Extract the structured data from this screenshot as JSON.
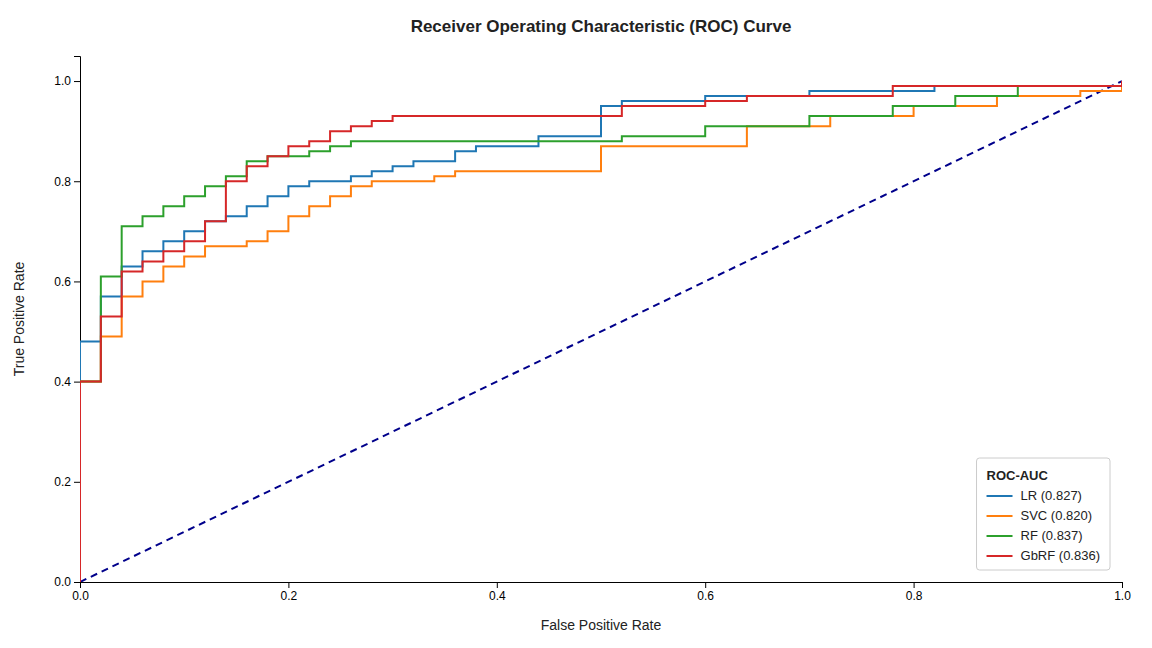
{
  "chart_data": {
    "type": "step",
    "title": "Receiver Operating Characteristic (ROC) Curve",
    "xlabel": "False Positive Rate",
    "ylabel": "True Positive Rate",
    "xlim": [
      0.0,
      1.0
    ],
    "ylim": [
      0.0,
      1.05
    ],
    "xticks": [
      {
        "value": 0.0,
        "label": "0.0"
      },
      0.2,
      0.4,
      0.6,
      0.8,
      {
        "value": 1.0,
        "label": "1.0"
      }
    ],
    "yticks": [
      {
        "value": 0.0,
        "label": "0.0"
      },
      0.2,
      0.4,
      0.6,
      0.8,
      {
        "value": 1.0,
        "label": "1.0"
      }
    ],
    "grid": false,
    "legend": "lower right",
    "legend_title": "ROC-AUC",
    "series": [
      {
        "type": "line",
        "line_style": "dashed",
        "color": "#00008B",
        "x": [
          0,
          1
        ],
        "values": [
          0,
          1
        ]
      },
      {
        "name": "LR (0.827)",
        "color": "#1f77b4",
        "x": [
          0.0,
          0.0,
          0.0,
          0.02,
          0.02,
          0.04,
          0.04,
          0.06,
          0.06,
          0.08,
          0.08,
          0.1,
          0.1,
          0.12,
          0.12,
          0.14,
          0.14,
          0.16,
          0.16,
          0.18,
          0.18,
          0.2,
          0.2,
          0.22,
          0.22,
          0.24,
          0.26,
          0.26,
          0.28,
          0.28,
          0.3,
          0.3,
          0.32,
          0.32,
          0.34,
          0.36,
          0.36,
          0.38,
          0.38,
          0.4,
          0.42,
          0.44,
          0.44,
          0.46,
          0.5,
          0.5,
          0.52,
          0.52,
          0.56,
          0.6,
          0.6,
          0.64,
          0.66,
          0.68,
          0.7,
          0.72,
          0.8,
          0.82,
          0.9,
          1.0
        ],
        "values": [
          0.0,
          0.27,
          0.48,
          0.48,
          0.57,
          0.57,
          0.63,
          0.63,
          0.66,
          0.66,
          0.68,
          0.68,
          0.7,
          0.7,
          0.72,
          0.72,
          0.73,
          0.73,
          0.75,
          0.75,
          0.77,
          0.77,
          0.79,
          0.79,
          0.8,
          0.8,
          0.8,
          0.81,
          0.81,
          0.82,
          0.82,
          0.83,
          0.83,
          0.84,
          0.84,
          0.84,
          0.86,
          0.86,
          0.87,
          0.87,
          0.87,
          0.87,
          0.89,
          0.89,
          0.89,
          0.95,
          0.95,
          0.96,
          0.96,
          0.96,
          0.97,
          0.97,
          0.97,
          0.97,
          0.98,
          0.98,
          0.98,
          0.99,
          0.99,
          1.0
        ]
      },
      {
        "name": "SVC (0.820)",
        "color": "#ff7f0e",
        "x": [
          0.0,
          0.0,
          0.0,
          0.02,
          0.02,
          0.04,
          0.04,
          0.06,
          0.06,
          0.08,
          0.08,
          0.1,
          0.1,
          0.12,
          0.12,
          0.14,
          0.16,
          0.16,
          0.18,
          0.18,
          0.2,
          0.2,
          0.22,
          0.22,
          0.24,
          0.24,
          0.26,
          0.26,
          0.28,
          0.28,
          0.3,
          0.32,
          0.34,
          0.34,
          0.36,
          0.36,
          0.38,
          0.4,
          0.42,
          0.44,
          0.46,
          0.48,
          0.5,
          0.5,
          0.54,
          0.56,
          0.58,
          0.62,
          0.64,
          0.66,
          0.7,
          0.72,
          0.76,
          0.8,
          0.84,
          0.88,
          0.92,
          0.96,
          1.0
        ],
        "values": [
          0.0,
          0.32,
          0.4,
          0.4,
          0.49,
          0.49,
          0.57,
          0.57,
          0.6,
          0.6,
          0.63,
          0.63,
          0.65,
          0.65,
          0.67,
          0.67,
          0.67,
          0.68,
          0.68,
          0.7,
          0.7,
          0.73,
          0.73,
          0.75,
          0.75,
          0.77,
          0.77,
          0.79,
          0.79,
          0.8,
          0.8,
          0.8,
          0.8,
          0.81,
          0.81,
          0.82,
          0.82,
          0.82,
          0.82,
          0.82,
          0.82,
          0.82,
          0.82,
          0.87,
          0.87,
          0.87,
          0.87,
          0.87,
          0.91,
          0.91,
          0.91,
          0.93,
          0.93,
          0.95,
          0.95,
          0.97,
          0.97,
          0.98,
          1.0
        ]
      },
      {
        "name": "RF (0.837)",
        "color": "#2ca02c",
        "x": [
          0.0,
          0.0,
          0.0,
          0.02,
          0.02,
          0.04,
          0.04,
          0.06,
          0.06,
          0.08,
          0.08,
          0.1,
          0.1,
          0.12,
          0.12,
          0.14,
          0.14,
          0.16,
          0.16,
          0.18,
          0.18,
          0.2,
          0.22,
          0.22,
          0.24,
          0.24,
          0.26,
          0.26,
          0.28,
          0.3,
          0.32,
          0.34,
          0.36,
          0.38,
          0.4,
          0.42,
          0.44,
          0.46,
          0.48,
          0.5,
          0.52,
          0.54,
          0.58,
          0.6,
          0.64,
          0.68,
          0.7,
          0.74,
          0.78,
          0.84,
          0.9,
          1.0
        ],
        "values": [
          0.0,
          0.37,
          0.4,
          0.4,
          0.61,
          0.61,
          0.71,
          0.71,
          0.73,
          0.73,
          0.75,
          0.75,
          0.77,
          0.77,
          0.79,
          0.79,
          0.81,
          0.81,
          0.84,
          0.84,
          0.85,
          0.85,
          0.85,
          0.86,
          0.86,
          0.87,
          0.87,
          0.88,
          0.88,
          0.88,
          0.88,
          0.88,
          0.88,
          0.88,
          0.88,
          0.88,
          0.88,
          0.88,
          0.88,
          0.88,
          0.89,
          0.89,
          0.89,
          0.91,
          0.91,
          0.91,
          0.93,
          0.93,
          0.95,
          0.97,
          0.99,
          1.0
        ]
      },
      {
        "name": "GbRF (0.836)",
        "color": "#d62728",
        "x": [
          0.0,
          0.0,
          0.0,
          0.02,
          0.02,
          0.04,
          0.04,
          0.06,
          0.06,
          0.08,
          0.08,
          0.1,
          0.1,
          0.12,
          0.12,
          0.14,
          0.14,
          0.16,
          0.16,
          0.18,
          0.18,
          0.2,
          0.2,
          0.22,
          0.22,
          0.24,
          0.24,
          0.26,
          0.26,
          0.28,
          0.28,
          0.3,
          0.3,
          0.32,
          0.34,
          0.36,
          0.38,
          0.4,
          0.42,
          0.44,
          0.48,
          0.52,
          0.56,
          0.6,
          0.64,
          0.68,
          0.72,
          0.78,
          0.84,
          0.9,
          1.0
        ],
        "values": [
          0.0,
          0.32,
          0.4,
          0.4,
          0.53,
          0.53,
          0.62,
          0.62,
          0.64,
          0.64,
          0.66,
          0.66,
          0.68,
          0.68,
          0.72,
          0.72,
          0.8,
          0.8,
          0.83,
          0.83,
          0.85,
          0.85,
          0.87,
          0.87,
          0.88,
          0.88,
          0.9,
          0.9,
          0.91,
          0.91,
          0.92,
          0.92,
          0.93,
          0.93,
          0.93,
          0.93,
          0.93,
          0.93,
          0.93,
          0.93,
          0.93,
          0.95,
          0.95,
          0.96,
          0.97,
          0.97,
          0.97,
          0.99,
          0.99,
          0.99,
          1.0
        ]
      }
    ]
  }
}
